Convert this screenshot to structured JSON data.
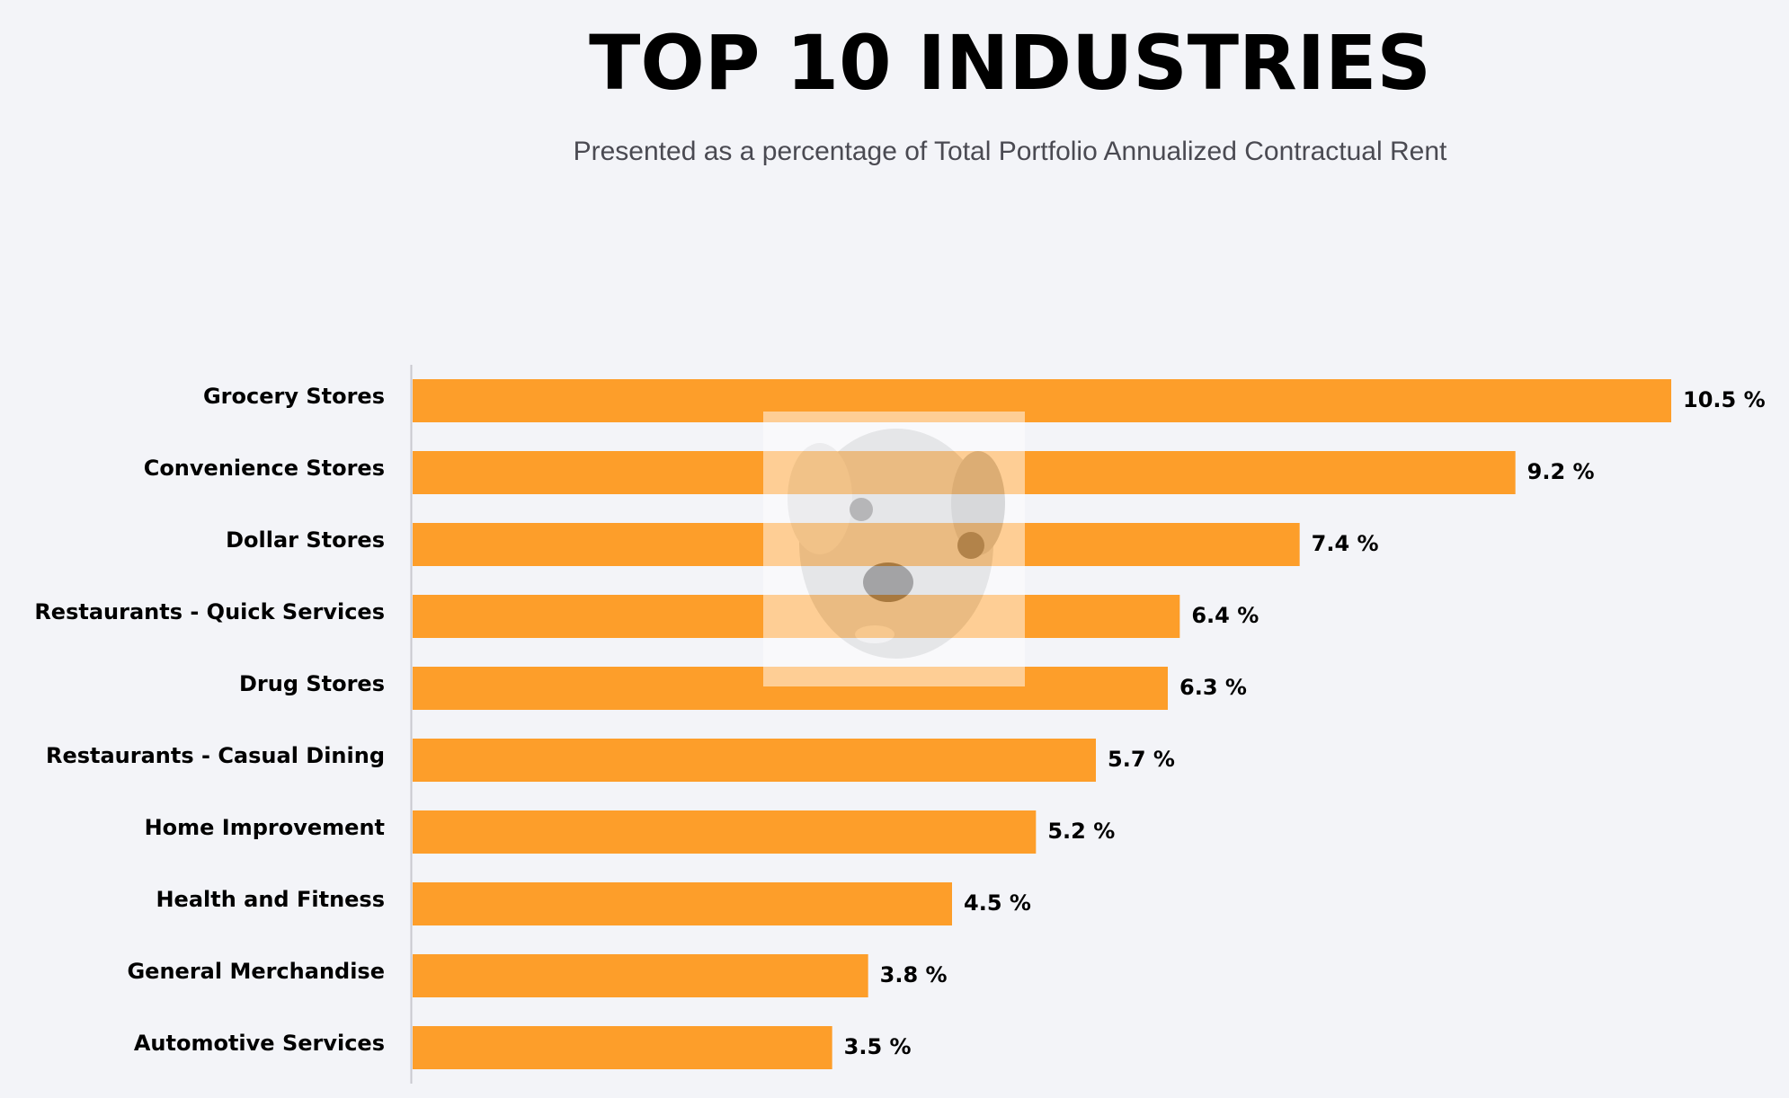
{
  "colors": {
    "background": "#f3f4f8",
    "bar": "#fd9e2a",
    "axis": "#c9c9cf",
    "text": "#000000",
    "subtitle": "#4a4a52"
  },
  "watermark_icon": "dog-face-icon",
  "chart_data": {
    "type": "bar",
    "orientation": "horizontal",
    "title": "TOP 10 INDUSTRIES",
    "subtitle": "Presented as a percentage of Total Portfolio Annualized Contractual Rent",
    "categories": [
      "Grocery Stores",
      "Convenience Stores",
      "Dollar Stores",
      "Restaurants - Quick Services",
      "Drug Stores",
      "Restaurants - Casual Dining",
      "Home Improvement",
      "Health and Fitness",
      "General Merchandise",
      "Automotive Services"
    ],
    "values": [
      10.5,
      9.2,
      7.4,
      6.4,
      6.3,
      5.7,
      5.2,
      4.5,
      3.8,
      3.5
    ],
    "value_labels": [
      "10.5 %",
      "9.2 %",
      "7.4 %",
      "6.4 %",
      "6.3 %",
      "5.7 %",
      "5.2 %",
      "4.5 %",
      "3.8 %",
      "3.5 %"
    ],
    "xlim": [
      0,
      10.5
    ],
    "xlabel": "",
    "ylabel": "",
    "grid": false,
    "legend": "none"
  }
}
